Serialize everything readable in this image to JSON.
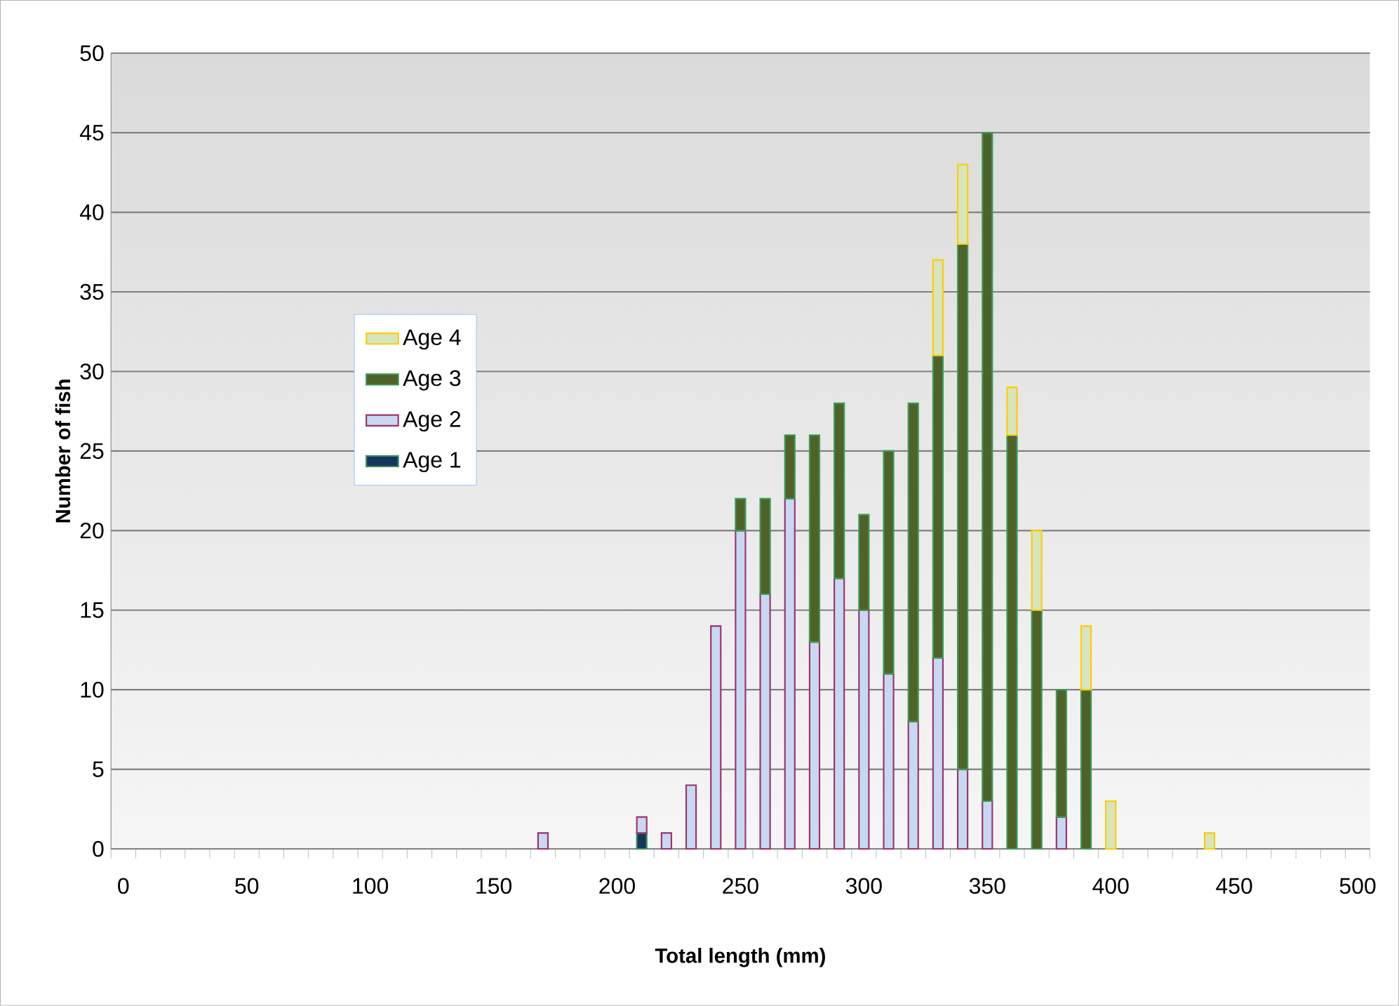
{
  "chart_data": {
    "type": "bar",
    "stacked": true,
    "xlabel": "Total length (mm)",
    "ylabel": "Number of fish",
    "x": [
      170,
      210,
      220,
      230,
      240,
      250,
      260,
      270,
      280,
      290,
      300,
      310,
      320,
      330,
      340,
      350,
      360,
      370,
      380,
      390,
      400,
      440
    ],
    "series": [
      {
        "name": "Age 1",
        "color": "#17365d",
        "values": [
          null,
          1,
          null,
          null,
          null,
          null,
          null,
          null,
          null,
          null,
          null,
          null,
          null,
          null,
          null,
          null,
          null,
          null,
          null,
          null,
          null,
          null
        ]
      },
      {
        "name": "Age 2",
        "color": "#c6d9f1",
        "values": [
          1,
          1,
          1,
          4,
          14,
          20,
          16,
          22,
          13,
          17,
          15,
          11,
          8,
          12,
          5,
          3,
          null,
          null,
          2,
          null,
          null,
          null
        ]
      },
      {
        "name": "Age 3",
        "color": "#4f6228",
        "values": [
          null,
          null,
          null,
          null,
          null,
          2,
          6,
          4,
          13,
          11,
          6,
          14,
          20,
          19,
          33,
          42,
          26,
          15,
          8,
          10,
          null,
          null
        ]
      },
      {
        "name": "Age 4",
        "color": "#d7e4bd",
        "values": [
          null,
          null,
          null,
          null,
          null,
          null,
          null,
          null,
          null,
          null,
          null,
          null,
          null,
          6,
          5,
          null,
          3,
          5,
          null,
          4,
          3,
          1
        ]
      }
    ],
    "xlim": [
      -5,
      505
    ],
    "xticks": [
      0,
      50,
      100,
      150,
      200,
      250,
      300,
      350,
      400,
      450,
      500,
      {
        "value": -5,
        "label": null
      },
      {
        "value": 5,
        "label": null
      },
      {
        "value": 15,
        "label": null
      },
      {
        "value": 25,
        "label": null
      },
      {
        "value": 35,
        "label": null
      },
      {
        "value": 45,
        "label": null
      },
      {
        "value": 55,
        "label": null
      },
      {
        "value": 65,
        "label": null
      },
      {
        "value": 75,
        "label": null
      },
      {
        "value": 85,
        "label": null
      },
      {
        "value": 95,
        "label": null
      },
      {
        "value": 105,
        "label": null
      },
      {
        "value": 115,
        "label": null
      },
      {
        "value": 125,
        "label": null
      },
      {
        "value": 135,
        "label": null
      },
      {
        "value": 145,
        "label": null
      },
      {
        "value": 155,
        "label": null
      },
      {
        "value": 165,
        "label": null
      },
      {
        "value": 175,
        "label": null
      },
      {
        "value": 185,
        "label": null
      },
      {
        "value": 195,
        "label": null
      },
      {
        "value": 205,
        "label": null
      },
      {
        "value": 215,
        "label": null
      },
      {
        "value": 225,
        "label": null
      },
      {
        "value": 235,
        "label": null
      },
      {
        "value": 245,
        "label": null
      },
      {
        "value": 255,
        "label": null
      },
      {
        "value": 265,
        "label": null
      },
      {
        "value": 275,
        "label": null
      },
      {
        "value": 285,
        "label": null
      },
      {
        "value": 295,
        "label": null
      },
      {
        "value": 305,
        "label": null
      },
      {
        "value": 315,
        "label": null
      },
      {
        "value": 325,
        "label": null
      },
      {
        "value": 335,
        "label": null
      },
      {
        "value": 345,
        "label": null
      },
      {
        "value": 355,
        "label": null
      },
      {
        "value": 365,
        "label": null
      },
      {
        "value": 375,
        "label": null
      },
      {
        "value": 385,
        "label": null
      },
      {
        "value": 395,
        "label": null
      },
      {
        "value": 405,
        "label": null
      },
      {
        "value": 415,
        "label": null
      },
      {
        "value": 425,
        "label": null
      },
      {
        "value": 435,
        "label": null
      },
      {
        "value": 445,
        "label": null
      },
      {
        "value": 455,
        "label": null
      },
      {
        "value": 465,
        "label": null
      },
      {
        "value": 475,
        "label": null
      },
      {
        "value": 485,
        "label": null
      },
      {
        "value": 495,
        "label": null
      },
      {
        "value": 505,
        "label": null
      }
    ],
    "ylim": [
      0,
      50
    ],
    "yticks": [
      0,
      5,
      10,
      15,
      20,
      25,
      30,
      35,
      40,
      45,
      50
    ],
    "grid": "y",
    "legend": "left"
  }
}
